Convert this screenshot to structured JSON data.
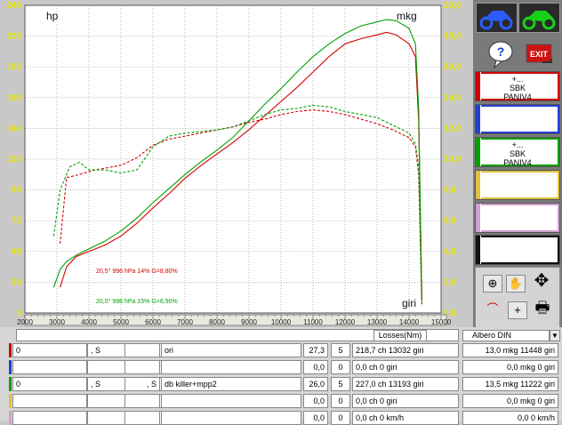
{
  "chart_data": {
    "type": "line",
    "xlabel": "giri",
    "ylabel_left": "hp",
    "ylabel_right": "mkg",
    "xlim": [
      2000,
      15000
    ],
    "ylim_left": [
      0,
      240
    ],
    "ylim_right": [
      0,
      20
    ],
    "x_ticks": [
      "2000",
      "3000",
      "4000",
      "5000",
      "6000",
      "7000",
      "8000",
      "9000",
      "10000",
      "11000",
      "12000",
      "13000",
      "14000",
      "15000"
    ],
    "y_left_ticks": [
      "0",
      "24",
      "48",
      "72",
      "96",
      "120",
      "144",
      "168",
      "192",
      "216",
      "240"
    ],
    "y_right_ticks": [
      "0,0",
      "2,0",
      "4,0",
      "6,0",
      "8,0",
      "10,0",
      "12,0",
      "14,0",
      "16,0",
      "18,0",
      "20,0"
    ],
    "grid": true,
    "annotations": [
      {
        "text": "20,5°  996 hPa  14%   G=8,80%",
        "color": "#d00000"
      },
      {
        "text": "20,0°  996 hPa  15%   G=6,90%",
        "color": "#00a000"
      }
    ],
    "series": [
      {
        "axis": "hp",
        "color": "#d00000",
        "style": "solid",
        "x": [
          3100,
          3300,
          3600,
          4000,
          4500,
          5000,
          5500,
          6000,
          6500,
          7000,
          7500,
          8000,
          8500,
          9000,
          9500,
          10000,
          10500,
          11000,
          11500,
          12000,
          12500,
          13000,
          13300,
          13600,
          14000,
          14200,
          14300,
          14400
        ],
        "y": [
          20,
          36,
          44,
          48,
          53,
          60,
          70,
          82,
          93,
          105,
          115,
          124,
          133,
          143,
          154,
          165,
          176,
          188,
          200,
          210,
          214,
          217,
          219,
          217,
          210,
          200,
          150,
          10
        ]
      },
      {
        "axis": "hp",
        "color": "#00a000",
        "style": "solid",
        "x": [
          2900,
          3100,
          3300,
          3600,
          4000,
          4500,
          5000,
          5500,
          6000,
          6500,
          7000,
          7500,
          8000,
          8500,
          9000,
          9500,
          10000,
          10500,
          11000,
          11500,
          12000,
          12500,
          13000,
          13300,
          13600,
          14000,
          14200,
          14300,
          14400
        ],
        "y": [
          20,
          34,
          40,
          45,
          50,
          56,
          64,
          74,
          86,
          97,
          108,
          118,
          127,
          137,
          150,
          163,
          175,
          188,
          200,
          210,
          218,
          224,
          227,
          229,
          228,
          222,
          210,
          160,
          10
        ]
      },
      {
        "axis": "mkg",
        "color": "#d00000",
        "style": "dashed",
        "x": [
          3100,
          3300,
          3700,
          4200,
          5000,
          5500,
          6000,
          6500,
          7000,
          7500,
          8000,
          8500,
          9000,
          9500,
          10000,
          10500,
          11000,
          11500,
          12000,
          12500,
          13000,
          13500,
          14000,
          14200,
          14300,
          14400
        ],
        "y": [
          4.5,
          8.8,
          9.0,
          9.3,
          9.6,
          10.1,
          10.9,
          11.3,
          11.5,
          11.7,
          11.9,
          12.1,
          12.4,
          12.6,
          12.9,
          13.1,
          13.2,
          13.1,
          12.9,
          12.6,
          12.3,
          11.9,
          11.4,
          10.8,
          9.0,
          0.5
        ]
      },
      {
        "axis": "mkg",
        "color": "#00a000",
        "style": "dashed",
        "x": [
          2900,
          3100,
          3400,
          3700,
          4000,
          4500,
          5000,
          5500,
          6000,
          6500,
          7000,
          7500,
          8000,
          8500,
          9000,
          9500,
          10000,
          10500,
          11000,
          11500,
          12000,
          12500,
          13000,
          13500,
          14000,
          14200,
          14300,
          14400
        ],
        "y": [
          5.0,
          8.0,
          9.5,
          9.8,
          9.3,
          9.3,
          9.1,
          9.3,
          10.8,
          11.5,
          11.7,
          11.8,
          11.9,
          12.1,
          12.5,
          12.9,
          13.2,
          13.3,
          13.5,
          13.4,
          13.1,
          12.9,
          12.7,
          12.2,
          11.7,
          11.0,
          9.5,
          0.5
        ]
      }
    ]
  },
  "sidebar": {
    "slots": [
      {
        "line1": "+...",
        "line2": "SBK",
        "line3": "PANIV4",
        "color": "#d00000"
      },
      {
        "line1": "",
        "line2": "",
        "line3": "",
        "color": "#2040d0"
      },
      {
        "line1": "+...",
        "line2": "SBK",
        "line3": "PANIV4",
        "color": "#00a000"
      },
      {
        "line1": "",
        "line2": "",
        "line3": "",
        "color": "#e0c040"
      },
      {
        "line1": "",
        "line2": "",
        "line3": "",
        "color": "#d0a0d0"
      },
      {
        "line1": "",
        "line2": "",
        "line3": "",
        "color": "#101010"
      }
    ],
    "exit_label": "EXIT",
    "help_label": "?"
  },
  "header": {
    "losses_label": "Losses(Nm)",
    "albero_label": "Albero DIN"
  },
  "rows": [
    {
      "color": "#d00000",
      "c1": "0",
      "c2": ", S",
      "c3": "",
      "name": "ori",
      "val1": "27,3",
      "val2": "5",
      "result": "218,7 ch 13032 giri",
      "torque": "13,0 mkg 11448 giri"
    },
    {
      "color": "#2040d0",
      "c1": "",
      "c2": "",
      "c3": "",
      "name": "",
      "val1": "0,0",
      "val2": "0",
      "result": "0,0 ch 0 giri",
      "torque": "0,0 mkg 0 giri"
    },
    {
      "color": "#00a000",
      "c1": "0",
      "c2": ", S",
      "c3": ", S",
      "name": "db killer+mpp2",
      "val1": "26,0",
      "val2": "5",
      "result": "227,0 ch 13193 giri",
      "torque": "13,5 mkg 11222 giri"
    },
    {
      "color": "#e0c040",
      "c1": "",
      "c2": "",
      "c3": "",
      "name": "",
      "val1": "0,0",
      "val2": "0",
      "result": "0,0 ch 0 giri",
      "torque": "0,0 mkg 0 giri"
    },
    {
      "color": "#d0a0d0",
      "c1": "",
      "c2": "",
      "c3": "",
      "name": "",
      "val1": "0,0",
      "val2": "0",
      "result": "0,0 ch 0 km/h",
      "torque": "0,0  0 km/h"
    }
  ]
}
